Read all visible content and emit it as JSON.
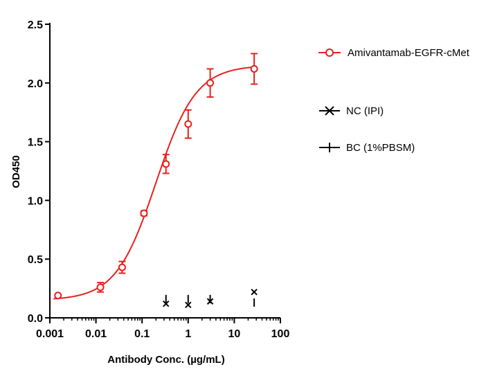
{
  "chart_data": {
    "type": "scatter",
    "title": "",
    "xlabel": "Antibody Conc. (µg/mL)",
    "ylabel": "OD450",
    "xscale": "log",
    "xlim": [
      0.001,
      100
    ],
    "ylim": [
      0,
      2.5
    ],
    "xticks": [
      {
        "value": 0.001,
        "label": "0.001"
      },
      {
        "value": 0.01,
        "label": "0.01"
      },
      {
        "value": 0.1,
        "label": "0.1"
      },
      {
        "value": 1,
        "label": "1"
      },
      {
        "value": 10,
        "label": "10"
      },
      {
        "value": 100,
        "label": "100"
      }
    ],
    "yticks": [
      {
        "value": 0,
        "label": "0.0"
      },
      {
        "value": 0.5,
        "label": "0.5"
      },
      {
        "value": 1.0,
        "label": "1.0"
      },
      {
        "value": 1.5,
        "label": "1.5"
      },
      {
        "value": 2.0,
        "label": "2.0"
      },
      {
        "value": 2.5,
        "label": "2.5"
      }
    ],
    "legend_position": "right",
    "series": [
      {
        "name": "Amivantamab-EGFR-cMet",
        "color": "#e8201c",
        "marker": "circle",
        "fit": "4PL",
        "fit_params": {
          "bottom": 0.15,
          "top": 2.15,
          "ec50": 0.2,
          "hill": 1.0
        },
        "x": [
          0.0015,
          0.0125,
          0.037,
          0.11,
          0.33,
          1,
          3,
          27
        ],
        "y": [
          0.19,
          0.26,
          0.43,
          0.89,
          1.31,
          1.65,
          2.0,
          2.12
        ],
        "err": [
          0.01,
          0.04,
          0.05,
          0.02,
          0.08,
          0.12,
          0.12,
          0.13
        ]
      },
      {
        "name": "NC (IPI)",
        "color": "#000000",
        "marker": "x",
        "x": [
          0.33,
          1,
          3,
          27
        ],
        "y": [
          0.12,
          0.11,
          0.14,
          0.22
        ]
      },
      {
        "name": "BC (1%PBSM)",
        "color": "#000000",
        "marker": "vbar",
        "x": [
          0.33,
          1,
          3,
          27
        ],
        "y": [
          0.16,
          0.16,
          0.16,
          0.13
        ]
      }
    ]
  }
}
